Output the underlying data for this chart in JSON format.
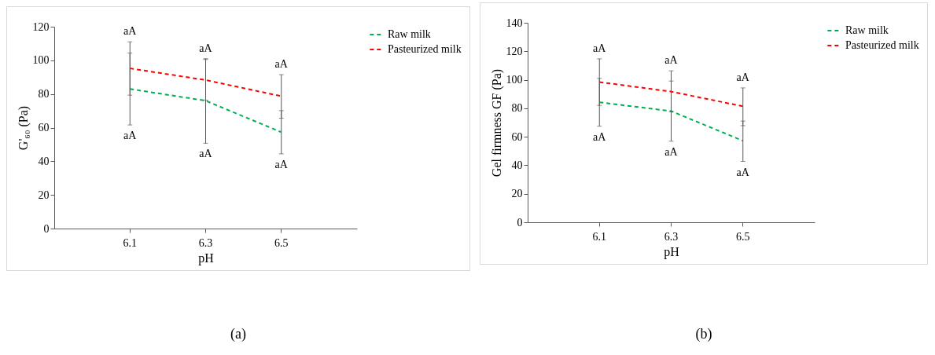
{
  "chart_data": [
    {
      "type": "line",
      "xlabel": "pH",
      "ylabel": "G'₆₀ (Pa)",
      "categories": [
        "6.1",
        "6.3",
        "6.5"
      ],
      "ylim": [
        0,
        120
      ],
      "yticks": [
        0,
        20,
        40,
        60,
        80,
        100,
        120
      ],
      "grid": false,
      "legend": "right",
      "marker": "none",
      "line_style": "dashed",
      "series": [
        {
          "name": "Raw milk",
          "color": "#00b050",
          "values": [
            83,
            76,
            57.3
          ],
          "errors": [
            [
              61.6,
              104.4
            ],
            [
              50.7,
              101
            ],
            [
              44.4,
              70.1
            ]
          ]
        },
        {
          "name": "Pasteurized milk",
          "color": "#ff0000",
          "values": [
            95.2,
            88.3,
            78.7
          ],
          "errors": [
            [
              79.3,
              111
            ],
            [
              76.3,
              100.5
            ],
            [
              65.6,
              91.5
            ]
          ]
        }
      ],
      "annotations": [
        "aA",
        "aA",
        "aA",
        "aA",
        "aA",
        "aA",
        "(a)"
      ]
    },
    {
      "type": "line",
      "xlabel": "pH",
      "ylabel": "Gel firmness GF (Pa)",
      "categories": [
        "6.1",
        "6.3",
        "6.5"
      ],
      "ylim": [
        0,
        140
      ],
      "yticks": [
        0,
        20,
        40,
        60,
        80,
        100,
        120,
        140
      ],
      "grid": false,
      "legend": "right",
      "marker": "none",
      "line_style": "dashed",
      "series": [
        {
          "name": "Raw milk",
          "color": "#00b050",
          "values": [
            84.2,
            78,
            57.2
          ],
          "errors": [
            [
              67.4,
              101
            ],
            [
              56.9,
              99.1
            ],
            [
              42.7,
              71
            ]
          ]
        },
        {
          "name": "Pasteurized milk",
          "color": "#ff0000",
          "values": [
            98.4,
            91.7,
            81.4
          ],
          "errors": [
            [
              82,
              114.7
            ],
            [
              77.6,
              106.3
            ],
            [
              67.8,
              94.3
            ]
          ]
        }
      ],
      "annotations": [
        "aA",
        "aA",
        "aA",
        "aA",
        "aA",
        "aA",
        "(b)"
      ]
    }
  ]
}
